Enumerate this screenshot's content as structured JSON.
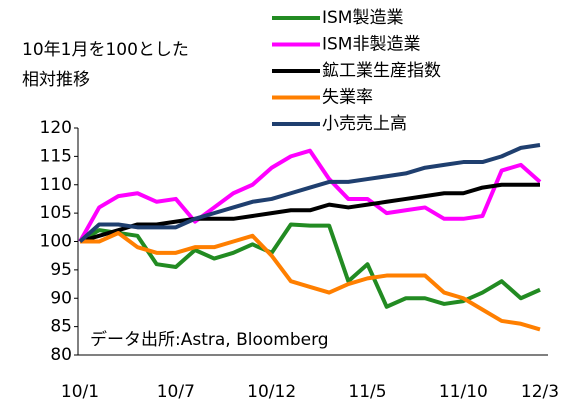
{
  "chart_data": {
    "type": "line",
    "title": "10年1月を100とした",
    "subtitle": "相対推移",
    "annotation": "データ出所:Astra, Bloomberg",
    "categories": [
      "10/1",
      null,
      null,
      null,
      null,
      "10/7",
      null,
      null,
      null,
      null,
      "10/12",
      null,
      null,
      null,
      null,
      "11/5",
      null,
      null,
      null,
      null,
      "11/10",
      null,
      null,
      null,
      "12/3"
    ],
    "series": [
      {
        "name": "ISM製造業",
        "color": "#228b22",
        "values": [
          100,
          102,
          101.5,
          101,
          96,
          95.5,
          98.5,
          97,
          98,
          99.5,
          98,
          103,
          102.8,
          102.8,
          93,
          96,
          88.5,
          90,
          90,
          89,
          89.5,
          91,
          93,
          90,
          91.5
        ]
      },
      {
        "name": "ISM非製造業",
        "color": "#ff00ff",
        "values": [
          100,
          106,
          108,
          108.5,
          107,
          107.5,
          103.5,
          106,
          108.5,
          110,
          113,
          115,
          116,
          111,
          107.5,
          107.5,
          105,
          105.5,
          106,
          104,
          104,
          104.5,
          112.5,
          113.5,
          110.5
        ]
      },
      {
        "name": "鉱工業生産指数",
        "color": "#000000",
        "values": [
          100,
          101,
          102,
          103,
          103,
          103.5,
          104,
          104,
          104,
          104.5,
          105,
          105.5,
          105.5,
          106.5,
          106,
          106.5,
          107,
          107.5,
          108,
          108.5,
          108.5,
          109.5,
          110,
          110,
          110
        ]
      },
      {
        "name": "失業率",
        "color": "#ff7f00",
        "values": [
          100,
          100,
          101.5,
          99,
          98,
          98,
          99,
          99,
          100,
          101,
          97.5,
          93,
          92,
          91,
          92.5,
          93.5,
          94,
          94,
          94,
          91,
          90,
          88,
          86,
          85.5,
          84.5
        ]
      },
      {
        "name": "小売売上高",
        "color": "#1f3f6f",
        "values": [
          100,
          103,
          103,
          102.5,
          102.5,
          102.5,
          104,
          105,
          106,
          107,
          107.5,
          108.5,
          109.5,
          110.5,
          110.5,
          111,
          111.5,
          112,
          113,
          113.5,
          114,
          114,
          115,
          116.5,
          117
        ]
      }
    ],
    "ylim": [
      80,
      120
    ],
    "yticks": [
      80,
      85,
      90,
      95,
      100,
      105,
      110,
      115,
      120
    ],
    "grid": false,
    "legend": "top-right"
  }
}
